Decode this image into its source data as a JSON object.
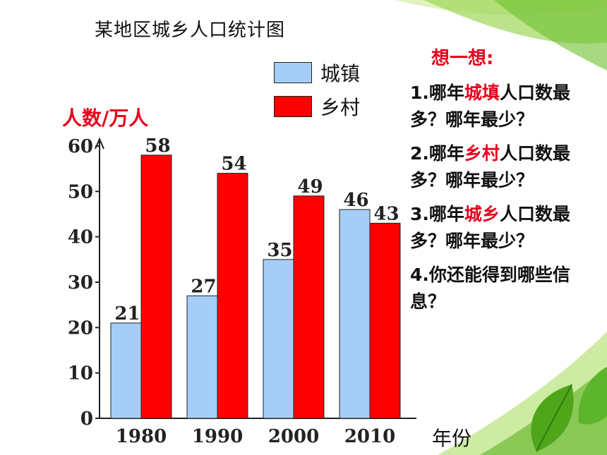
{
  "chart_data": {
    "type": "bar",
    "title": "某地区城乡人口统计图",
    "ylabel": "人数/万人",
    "xlabel": "年份",
    "categories": [
      "1980",
      "1990",
      "2000",
      "2010"
    ],
    "series": [
      {
        "name": "城镇",
        "color": "#a6cdf7",
        "values": [
          21,
          27,
          35,
          46
        ]
      },
      {
        "name": "乡村",
        "color": "#ff0000",
        "values": [
          58,
          54,
          49,
          43
        ]
      }
    ],
    "yticks": [
      0,
      10,
      20,
      30,
      40,
      50,
      60
    ],
    "ylim": [
      0,
      60
    ],
    "legend_position": "top-center"
  },
  "questions": {
    "heading": "想一想:",
    "items": [
      {
        "n": "1.",
        "pre": "哪年",
        "hl": "城填",
        "post": "人口数最多？哪年最少？"
      },
      {
        "n": "2.",
        "pre": "哪年",
        "hl": "乡村",
        "post": "人口数最多？哪年最少？"
      },
      {
        "n": "3.",
        "pre": "哪年",
        "hl": "城乡",
        "post": "人口数最多？哪年最少？"
      },
      {
        "n": "4.",
        "pre": "你还能得到哪些信息？",
        "hl": "",
        "post": ""
      }
    ]
  },
  "colors": {
    "accent_red": "#e8001c",
    "leaf_green": "#7ac142"
  }
}
